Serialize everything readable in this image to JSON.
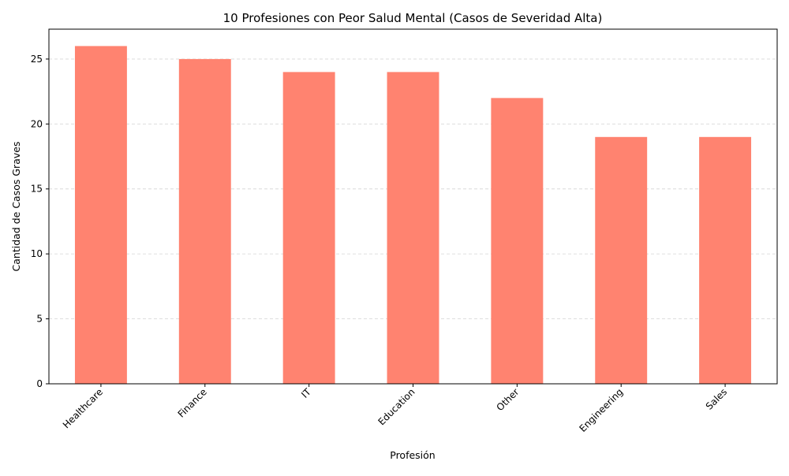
{
  "chart_data": {
    "type": "bar",
    "title": "10 Profesiones con Peor Salud Mental (Casos de Severidad Alta)",
    "xlabel": "Profesión",
    "ylabel": "Cantidad de Casos Graves",
    "categories": [
      "Healthcare",
      "Finance",
      "IT",
      "Education",
      "Other",
      "Engineering",
      "Sales"
    ],
    "values": [
      26,
      25,
      24,
      24,
      22,
      19,
      19
    ],
    "ylim": [
      0,
      27.3
    ],
    "yticks": [
      0,
      5,
      10,
      15,
      20,
      25
    ],
    "grid": {
      "y": true,
      "x": false,
      "style": "dashed"
    },
    "x_tick_rotation": 45,
    "colors": {
      "bar": "#ff8370",
      "grid": "#d9d9d9",
      "axis": "#000000"
    }
  }
}
